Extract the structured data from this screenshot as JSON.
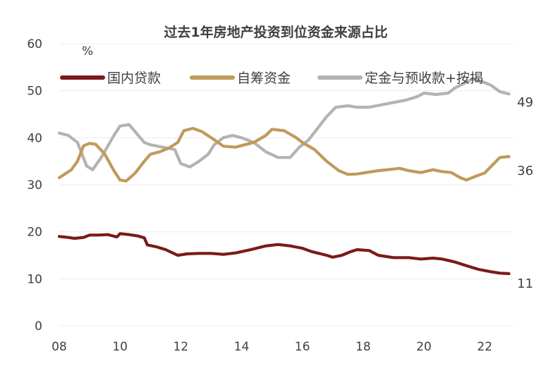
{
  "chart_data": {
    "type": "line",
    "title": "过去1年房地产投资到位资金来源占比",
    "unit": "%",
    "ylim": [
      0,
      60
    ],
    "y_ticks": [
      "0",
      "10",
      "20",
      "30",
      "40",
      "50",
      "60"
    ],
    "x_ticks": [
      "08",
      "10",
      "12",
      "14",
      "16",
      "18",
      "20",
      "22"
    ],
    "xlim": [
      2008,
      2022.95
    ],
    "grid": "horizontal",
    "legend_position": "top",
    "series": [
      {
        "name": "国内贷款",
        "color": "#7b1a1a",
        "end_label": "11",
        "points": [
          [
            2008.0,
            19.0
          ],
          [
            2008.3,
            18.8
          ],
          [
            2008.5,
            18.6
          ],
          [
            2008.8,
            18.8
          ],
          [
            2009.0,
            19.3
          ],
          [
            2009.3,
            19.3
          ],
          [
            2009.6,
            19.4
          ],
          [
            2009.9,
            18.9
          ],
          [
            2010.0,
            19.6
          ],
          [
            2010.3,
            19.4
          ],
          [
            2010.6,
            19.1
          ],
          [
            2010.8,
            18.7
          ],
          [
            2010.9,
            17.2
          ],
          [
            2011.2,
            16.8
          ],
          [
            2011.5,
            16.2
          ],
          [
            2011.9,
            15.0
          ],
          [
            2012.2,
            15.3
          ],
          [
            2012.6,
            15.4
          ],
          [
            2013.0,
            15.4
          ],
          [
            2013.4,
            15.2
          ],
          [
            2013.8,
            15.5
          ],
          [
            2014.3,
            16.2
          ],
          [
            2014.8,
            17.0
          ],
          [
            2015.2,
            17.3
          ],
          [
            2015.6,
            17.0
          ],
          [
            2016.0,
            16.5
          ],
          [
            2016.3,
            15.8
          ],
          [
            2016.8,
            15.0
          ],
          [
            2017.0,
            14.6
          ],
          [
            2017.3,
            15.0
          ],
          [
            2017.6,
            15.8
          ],
          [
            2017.8,
            16.2
          ],
          [
            2018.2,
            16.0
          ],
          [
            2018.5,
            15.0
          ],
          [
            2019.0,
            14.5
          ],
          [
            2019.5,
            14.5
          ],
          [
            2019.9,
            14.2
          ],
          [
            2020.3,
            14.4
          ],
          [
            2020.6,
            14.2
          ],
          [
            2021.0,
            13.6
          ],
          [
            2021.4,
            12.8
          ],
          [
            2021.8,
            12.0
          ],
          [
            2022.2,
            11.5
          ],
          [
            2022.5,
            11.2
          ],
          [
            2022.8,
            11.1
          ]
        ]
      },
      {
        "name": "自筹资金",
        "color": "#c09a5b",
        "end_label": "36",
        "points": [
          [
            2008.0,
            31.5
          ],
          [
            2008.4,
            33.2
          ],
          [
            2008.6,
            35.0
          ],
          [
            2008.8,
            38.3
          ],
          [
            2009.0,
            38.8
          ],
          [
            2009.2,
            38.6
          ],
          [
            2009.5,
            36.5
          ],
          [
            2009.8,
            33.0
          ],
          [
            2010.0,
            31.0
          ],
          [
            2010.2,
            30.8
          ],
          [
            2010.5,
            32.5
          ],
          [
            2010.8,
            35.0
          ],
          [
            2011.0,
            36.5
          ],
          [
            2011.3,
            37.0
          ],
          [
            2011.6,
            37.8
          ],
          [
            2011.9,
            39.0
          ],
          [
            2012.1,
            41.5
          ],
          [
            2012.4,
            42.0
          ],
          [
            2012.7,
            41.3
          ],
          [
            2013.0,
            40.0
          ],
          [
            2013.4,
            38.2
          ],
          [
            2013.8,
            38.0
          ],
          [
            2014.1,
            38.5
          ],
          [
            2014.4,
            39.0
          ],
          [
            2014.8,
            40.5
          ],
          [
            2015.0,
            41.8
          ],
          [
            2015.4,
            41.5
          ],
          [
            2015.8,
            40.0
          ],
          [
            2016.0,
            39.0
          ],
          [
            2016.4,
            37.5
          ],
          [
            2016.8,
            35.0
          ],
          [
            2017.2,
            33.0
          ],
          [
            2017.5,
            32.2
          ],
          [
            2017.8,
            32.3
          ],
          [
            2018.2,
            32.7
          ],
          [
            2018.5,
            33.0
          ],
          [
            2018.8,
            33.2
          ],
          [
            2019.2,
            33.5
          ],
          [
            2019.5,
            33.0
          ],
          [
            2019.9,
            32.6
          ],
          [
            2020.3,
            33.2
          ],
          [
            2020.6,
            32.8
          ],
          [
            2020.9,
            32.6
          ],
          [
            2021.2,
            31.5
          ],
          [
            2021.4,
            31.0
          ],
          [
            2021.7,
            31.8
          ],
          [
            2022.0,
            32.5
          ],
          [
            2022.3,
            34.5
          ],
          [
            2022.5,
            35.8
          ],
          [
            2022.8,
            36.0
          ]
        ]
      },
      {
        "name": "定金与预收款+按揭",
        "color": "#b3b3b3",
        "end_label": "49",
        "points": [
          [
            2008.0,
            41.0
          ],
          [
            2008.3,
            40.5
          ],
          [
            2008.6,
            39.0
          ],
          [
            2008.9,
            34.0
          ],
          [
            2009.1,
            33.2
          ],
          [
            2009.4,
            36.0
          ],
          [
            2009.8,
            40.5
          ],
          [
            2010.0,
            42.5
          ],
          [
            2010.3,
            42.8
          ],
          [
            2010.6,
            40.5
          ],
          [
            2010.8,
            39.0
          ],
          [
            2011.0,
            38.5
          ],
          [
            2011.4,
            38.0
          ],
          [
            2011.8,
            37.5
          ],
          [
            2012.0,
            34.5
          ],
          [
            2012.3,
            33.8
          ],
          [
            2012.6,
            35.0
          ],
          [
            2012.9,
            36.5
          ],
          [
            2013.1,
            38.5
          ],
          [
            2013.4,
            40.0
          ],
          [
            2013.7,
            40.5
          ],
          [
            2014.0,
            40.0
          ],
          [
            2014.4,
            39.0
          ],
          [
            2014.8,
            37.0
          ],
          [
            2015.2,
            35.8
          ],
          [
            2015.6,
            35.8
          ],
          [
            2015.9,
            38.0
          ],
          [
            2016.2,
            39.5
          ],
          [
            2016.5,
            42.0
          ],
          [
            2016.8,
            44.5
          ],
          [
            2017.1,
            46.5
          ],
          [
            2017.5,
            46.8
          ],
          [
            2017.8,
            46.5
          ],
          [
            2018.2,
            46.5
          ],
          [
            2018.6,
            47.0
          ],
          [
            2019.0,
            47.5
          ],
          [
            2019.4,
            48.0
          ],
          [
            2019.8,
            48.8
          ],
          [
            2020.0,
            49.5
          ],
          [
            2020.4,
            49.2
          ],
          [
            2020.8,
            49.5
          ],
          [
            2021.0,
            50.5
          ],
          [
            2021.3,
            51.5
          ],
          [
            2021.6,
            52.5
          ],
          [
            2021.9,
            52.0
          ],
          [
            2022.2,
            51.2
          ],
          [
            2022.5,
            49.8
          ],
          [
            2022.8,
            49.3
          ]
        ]
      }
    ]
  }
}
